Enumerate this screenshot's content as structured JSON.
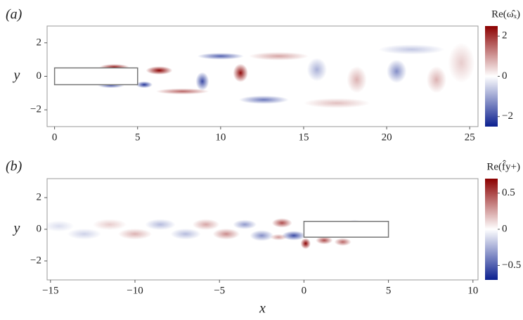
{
  "chart_data": [
    {
      "type": "field",
      "panel_label": "(a)",
      "ylabel": "y",
      "colorbar_label": "Re(ω̂ₓ)",
      "xlim": [
        -0.45,
        25.5
      ],
      "ylim": [
        -3,
        3
      ],
      "xticks": [
        0,
        5,
        10,
        15,
        20,
        25
      ],
      "yticks": [
        {
          "value": -2,
          "label": "−2"
        },
        0,
        2
      ],
      "clim": [
        -2.5,
        2.5
      ],
      "cticks": [
        {
          "value": -2,
          "label": "−2"
        },
        0,
        2
      ],
      "colors": {
        "low": "#0b1f8f",
        "mid": "#ffffff",
        "high": "#8b0000"
      },
      "body": {
        "x": [
          0,
          5
        ],
        "y": [
          -0.5,
          0.5
        ]
      }
    },
    {
      "type": "field",
      "panel_label": "(b)",
      "ylabel": "y",
      "xlabel": "x",
      "colorbar_label": "Re(f̂y+)",
      "xlim": [
        -15.2,
        10.3
      ],
      "ylim": [
        -3.2,
        3.2
      ],
      "xticks": [
        {
          "value": -15,
          "label": "−15"
        },
        {
          "value": -10,
          "label": "−10"
        },
        {
          "value": -5,
          "label": "−5"
        },
        0,
        5,
        10
      ],
      "yticks": [
        {
          "value": -2,
          "label": "−2"
        },
        0,
        2
      ],
      "clim": [
        -0.7,
        0.7
      ],
      "cticks": [
        {
          "value": -0.5,
          "label": "−0.5"
        },
        0,
        0.5
      ],
      "colors": {
        "low": "#0b1f8f",
        "mid": "#ffffff",
        "high": "#8b0000"
      },
      "body": {
        "x": [
          0,
          5
        ],
        "y": [
          -0.5,
          0.5
        ]
      }
    }
  ]
}
